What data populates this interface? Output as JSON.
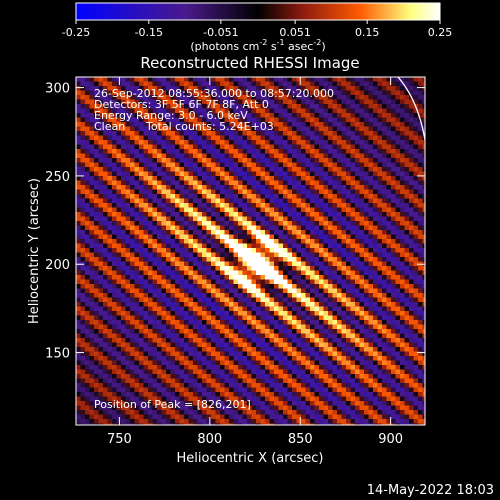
{
  "colorbar": {
    "ticks": [
      "-0.25",
      "-0.15",
      "-0.051",
      "0.051",
      "0.15",
      "0.25"
    ],
    "tick_values": [
      -0.25,
      -0.15,
      -0.051,
      0.051,
      0.15,
      0.25
    ],
    "range": [
      -0.25,
      0.25
    ],
    "unit_main": "(photons cm",
    "unit_sup1": "-2",
    "unit_s": " s",
    "unit_sup2": "-1",
    "unit_tail": " asec",
    "unit_sup3": "-2",
    "unit_close": ")",
    "colors": [
      "#0000ff",
      "#4a1a8c",
      "#000000",
      "#8c1a10",
      "#ff5a00",
      "#ffff80",
      "#ffffff"
    ]
  },
  "chart_data": {
    "type": "heatmap",
    "title": "Reconstructed RHESSI Image",
    "xlabel": "Heliocentric X (arcsec)",
    "ylabel": "Heliocentric Y (arcsec)",
    "xlim": [
      726,
      919
    ],
    "ylim": [
      109,
      306
    ],
    "x_ticks": [
      750,
      800,
      850,
      900
    ],
    "y_ticks": [
      150,
      200,
      250,
      300
    ],
    "x_tick_labels": [
      "750",
      "800",
      "850",
      "900"
    ],
    "y_tick_labels": [
      "150",
      "200",
      "250",
      "300"
    ],
    "annotations": [
      "26-Sep-2012 08:55:36.000 to 08:57:20.000",
      "Detectors: 3F 5F 6F 7F 8F, Att 0",
      "Energy Range: 3.0 - 6.0 keV",
      "Clean",
      "Total counts: 5.24E+03"
    ],
    "peak_label": "Position of Peak = [826,201]",
    "peak": [
      826,
      201
    ],
    "limb_circle": true
  },
  "footer": {
    "timestamp": "14-May-2022 18:03"
  }
}
